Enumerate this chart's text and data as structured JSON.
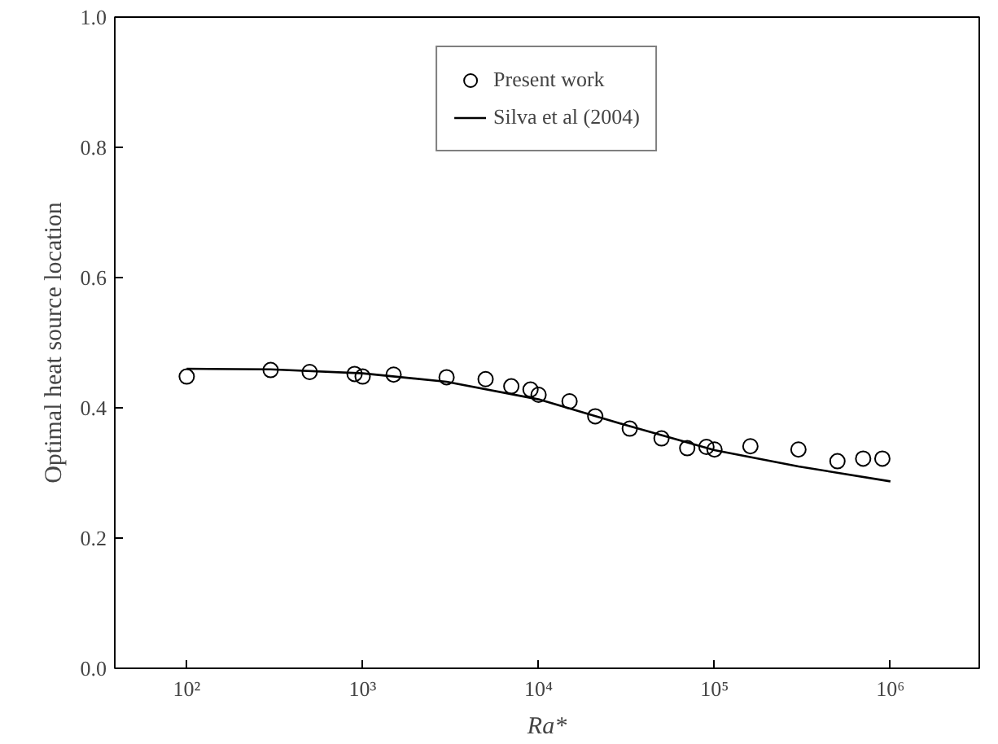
{
  "chart_data": {
    "type": "scatter",
    "xlabel": "Ra*",
    "ylabel": "Optimal heat source location",
    "log": "x",
    "xlim": [
      39,
      3200000
    ],
    "ylim": [
      0,
      1
    ],
    "xticks": [
      {
        "value": 100,
        "label": "10²"
      },
      {
        "value": 1000,
        "label": "10³"
      },
      {
        "value": 10000,
        "label": "10⁴"
      },
      {
        "value": 100000,
        "label": "10⁵"
      },
      {
        "value": 1000000,
        "label": "10⁶"
      }
    ],
    "yticks": [
      {
        "value": 0,
        "label": "0.0"
      },
      {
        "value": 0.2,
        "label": "0.2"
      },
      {
        "value": 0.4,
        "label": "0.4"
      },
      {
        "value": 0.6,
        "label": "0.6"
      },
      {
        "value": 0.8,
        "label": "0.8"
      },
      {
        "value": 1,
        "label": "1.0"
      }
    ],
    "grid": false,
    "legend": "top",
    "series": [
      {
        "name": "Present work",
        "marker": "circle",
        "color": "#000000",
        "x": [
          100,
          300,
          500,
          900,
          1000,
          1500,
          3000,
          5000,
          7000,
          9000,
          10000,
          15000,
          21000,
          33000,
          50000,
          70000,
          90000,
          100000,
          160000,
          300000,
          500000,
          700000,
          900000
        ],
        "values": [
          0.448,
          0.458,
          0.455,
          0.452,
          0.448,
          0.451,
          0.447,
          0.444,
          0.433,
          0.428,
          0.42,
          0.41,
          0.387,
          0.368,
          0.353,
          0.338,
          0.34,
          0.336,
          0.341,
          0.336,
          0.318,
          0.322,
          0.322
        ]
      },
      {
        "name": "Silva et al (2004)",
        "type": "line",
        "marker": "none",
        "color": "#000000",
        "line_style": "solid",
        "x": [
          100,
          300,
          1000,
          3000,
          10000,
          30000,
          100000,
          300000,
          1000000
        ],
        "values": [
          0.46,
          0.459,
          0.453,
          0.44,
          0.413,
          0.375,
          0.335,
          0.31,
          0.287
        ]
      }
    ]
  }
}
